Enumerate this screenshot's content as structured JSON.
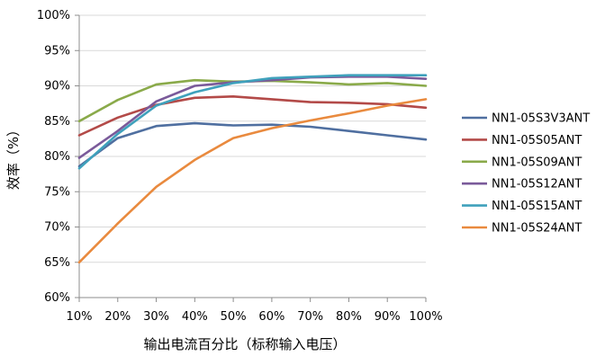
{
  "chart_data": {
    "type": "line",
    "title": "",
    "xlabel": "输出电流百分比（标称输入电压）",
    "ylabel": "效率（%）",
    "x": [
      "10%",
      "20%",
      "30%",
      "40%",
      "50%",
      "60%",
      "70%",
      "80%",
      "90%",
      "100%"
    ],
    "y_ticks": [
      "60%",
      "65%",
      "70%",
      "75%",
      "80%",
      "85%",
      "90%",
      "95%",
      "100%"
    ],
    "ylim": [
      60,
      100
    ],
    "grid": "horizontal",
    "legend": "right",
    "series": [
      {
        "name": "NN1-05S3V3ANT",
        "color": "#4F6FA0",
        "values": [
          78.6,
          82.6,
          84.3,
          84.7,
          84.4,
          84.5,
          84.2,
          83.6,
          83.0,
          82.4
        ]
      },
      {
        "name": "NN1-05S05ANT",
        "color": "#B34A48",
        "values": [
          83.0,
          85.5,
          87.3,
          88.3,
          88.5,
          88.1,
          87.7,
          87.6,
          87.4,
          86.9
        ]
      },
      {
        "name": "NN1-05S09ANT",
        "color": "#8AAA4A",
        "values": [
          85.0,
          88.0,
          90.2,
          90.8,
          90.6,
          90.7,
          90.5,
          90.2,
          90.4,
          90.0
        ]
      },
      {
        "name": "NN1-05S12ANT",
        "color": "#7A5A9A",
        "values": [
          79.8,
          83.6,
          87.8,
          90.0,
          90.5,
          90.8,
          91.2,
          91.3,
          91.3,
          91.0
        ]
      },
      {
        "name": "NN1-05S15ANT",
        "color": "#3FA1BC",
        "values": [
          78.3,
          83.2,
          87.2,
          89.1,
          90.4,
          91.1,
          91.3,
          91.5,
          91.5,
          91.5
        ]
      },
      {
        "name": "NN1-05S24ANT",
        "color": "#E98A3E",
        "values": [
          65.0,
          70.5,
          75.7,
          79.5,
          82.6,
          84.0,
          85.1,
          86.1,
          87.2,
          88.1
        ]
      }
    ]
  }
}
